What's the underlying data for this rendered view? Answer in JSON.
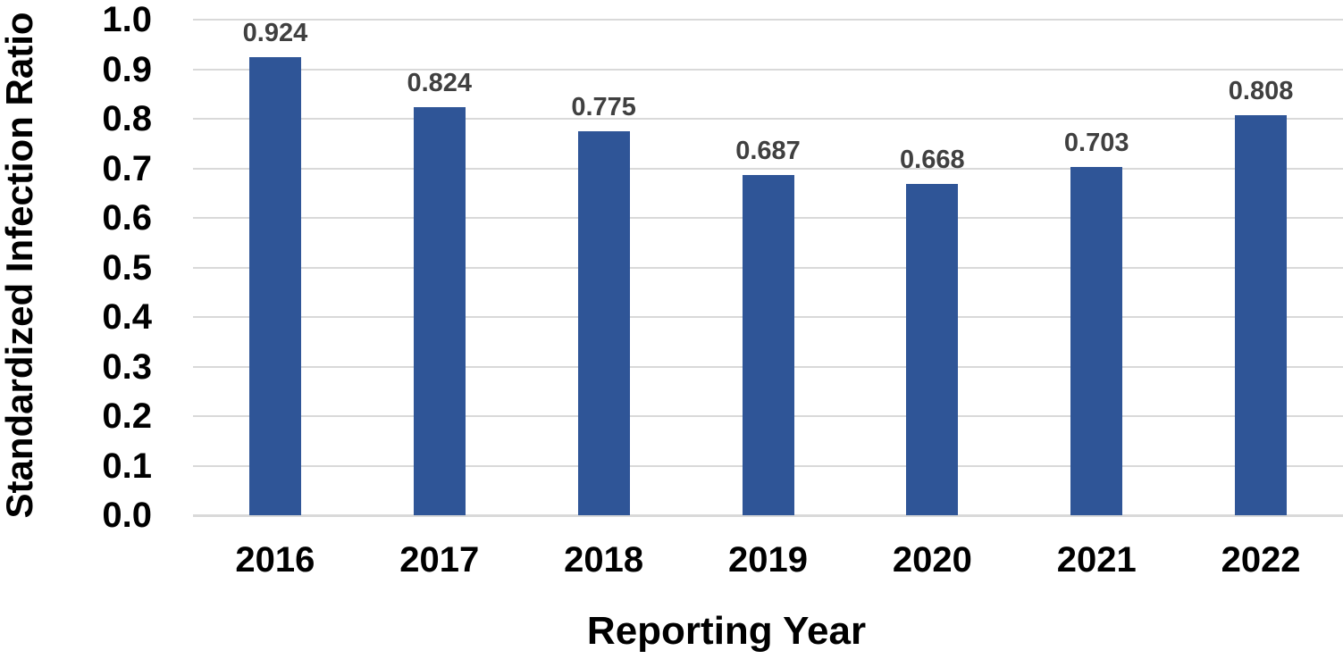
{
  "chart_data": {
    "type": "bar",
    "title": "",
    "xlabel": "Reporting Year",
    "ylabel": "Standardized Infection Ratio",
    "categories": [
      "2016",
      "2017",
      "2018",
      "2019",
      "2020",
      "2021",
      "2022"
    ],
    "values": [
      0.924,
      0.824,
      0.775,
      0.687,
      0.668,
      0.703,
      0.808
    ],
    "data_labels": [
      "0.924",
      "0.824",
      "0.775",
      "0.687",
      "0.668",
      "0.703",
      "0.808"
    ],
    "ylim": [
      0.0,
      1.0
    ],
    "ytick_step": 0.1,
    "ytick_labels": [
      "0.0",
      "0.1",
      "0.2",
      "0.3",
      "0.4",
      "0.5",
      "0.6",
      "0.7",
      "0.8",
      "0.9",
      "1.0"
    ],
    "grid": true,
    "legend": false,
    "colors": {
      "bar_fill": "#2F5597",
      "gridline": "#D9D9D9",
      "axis_line": "#D9D9D9",
      "data_label": "#404040",
      "tick_label": "#000000",
      "axis_title": "#000000",
      "background": "#FFFFFF"
    }
  }
}
